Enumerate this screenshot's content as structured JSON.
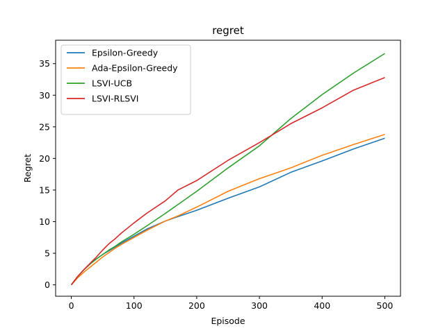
{
  "chart_data": {
    "type": "line",
    "title": "regret",
    "xlabel": "Episode",
    "ylabel": "Regret",
    "xlim": [
      -25,
      525
    ],
    "ylim": [
      -1.8,
      38.7
    ],
    "xticks": [
      0,
      100,
      200,
      300,
      400,
      500
    ],
    "yticks": [
      0,
      5,
      10,
      15,
      20,
      25,
      30,
      35
    ],
    "grid": false,
    "legend_position": "top-left",
    "series": [
      {
        "name": "Epsilon-Greedy",
        "color": "#1f77b4",
        "x": [
          0,
          10,
          20,
          30,
          40,
          50,
          60,
          70,
          80,
          100,
          120,
          150,
          170,
          200,
          250,
          300,
          350,
          400,
          450,
          500
        ],
        "y": [
          0,
          1.3,
          2.4,
          3.3,
          4.1,
          4.8,
          5.4,
          6.0,
          6.6,
          7.7,
          8.8,
          10.1,
          10.8,
          11.8,
          13.7,
          15.5,
          17.8,
          19.6,
          21.5,
          23.2
        ]
      },
      {
        "name": "Ada-Epsilon-Greedy",
        "color": "#ff7f0e",
        "x": [
          0,
          10,
          20,
          30,
          40,
          50,
          60,
          70,
          80,
          100,
          120,
          150,
          170,
          200,
          250,
          300,
          350,
          400,
          450,
          500
        ],
        "y": [
          0,
          1.1,
          2.0,
          2.8,
          3.6,
          4.4,
          5.1,
          5.8,
          6.4,
          7.5,
          8.6,
          10.1,
          10.9,
          12.3,
          14.8,
          16.8,
          18.5,
          20.5,
          22.2,
          23.8
        ]
      },
      {
        "name": "LSVI-UCB",
        "color": "#2ca02c",
        "x": [
          0,
          10,
          20,
          30,
          40,
          50,
          60,
          70,
          80,
          100,
          120,
          150,
          170,
          200,
          250,
          300,
          350,
          400,
          450,
          500
        ],
        "y": [
          0,
          1.3,
          2.4,
          3.3,
          4.1,
          4.8,
          5.5,
          6.1,
          6.8,
          8.0,
          9.3,
          11.3,
          12.7,
          14.8,
          18.5,
          22.0,
          26.3,
          30.1,
          33.5,
          36.6
        ]
      },
      {
        "name": "LSVI-RLSVI",
        "color": "#d62728",
        "x": [
          0,
          10,
          20,
          30,
          40,
          50,
          60,
          70,
          80,
          100,
          120,
          150,
          170,
          200,
          250,
          300,
          350,
          400,
          450,
          500
        ],
        "y": [
          0,
          1.3,
          2.4,
          3.4,
          4.4,
          5.5,
          6.5,
          7.3,
          8.2,
          9.8,
          11.3,
          13.3,
          15.0,
          16.5,
          19.7,
          22.5,
          25.5,
          28.0,
          30.8,
          32.8
        ]
      }
    ]
  }
}
